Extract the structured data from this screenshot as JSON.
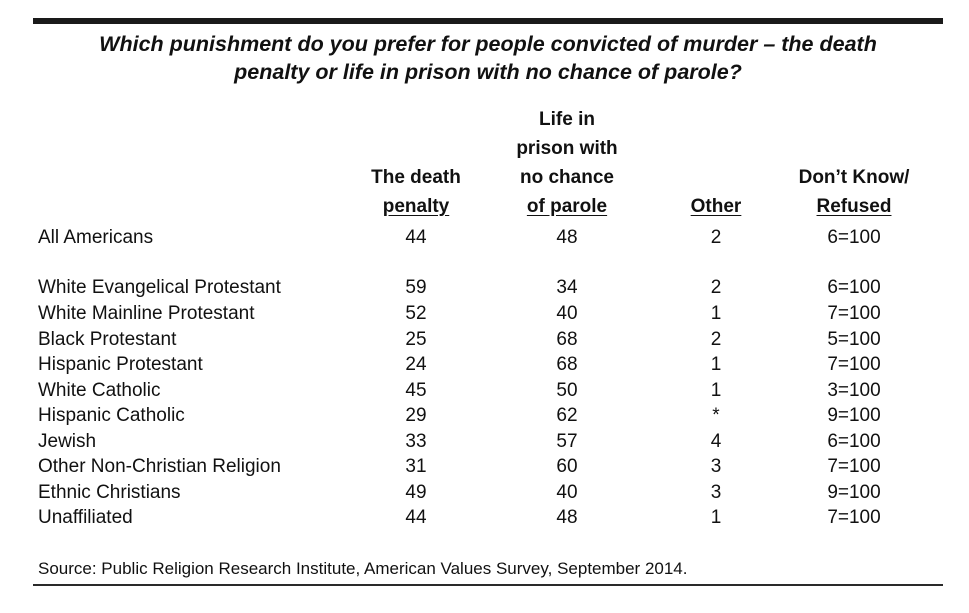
{
  "title": {
    "line1": "Which punishment do you prefer for people convicted of murder – the death",
    "line2": "penalty or life in prison with no chance of parole?"
  },
  "columns": [
    {
      "lines": [
        "The death"
      ],
      "underlined": "penalty"
    },
    {
      "lines": [
        "Life in",
        "prison with",
        "no chance"
      ],
      "underlined": "of parole"
    },
    {
      "lines": [],
      "underlined": "Other"
    },
    {
      "lines": [
        "Don’t Know/"
      ],
      "underlined": "Refused"
    }
  ],
  "rows": [
    {
      "label": "All Americans",
      "values": [
        "44",
        "48",
        "2",
        "6=100"
      ]
    },
    {
      "label": "White Evangelical Protestant",
      "values": [
        "59",
        "34",
        "2",
        "6=100"
      ]
    },
    {
      "label": "White Mainline Protestant",
      "values": [
        "52",
        "40",
        "1",
        "7=100"
      ]
    },
    {
      "label": "Black Protestant",
      "values": [
        "25",
        "68",
        "2",
        "5=100"
      ]
    },
    {
      "label": "Hispanic Protestant",
      "values": [
        "24",
        "68",
        "1",
        "7=100"
      ]
    },
    {
      "label": "White Catholic",
      "values": [
        "45",
        "50",
        "1",
        "3=100"
      ]
    },
    {
      "label": "Hispanic Catholic",
      "values": [
        "29",
        "62",
        "*",
        "9=100"
      ]
    },
    {
      "label": "Jewish",
      "values": [
        "33",
        "57",
        "4",
        "6=100"
      ]
    },
    {
      "label": "Other Non-Christian Religion",
      "values": [
        "31",
        "60",
        "3",
        "7=100"
      ]
    },
    {
      "label": "Ethnic Christians",
      "values": [
        "49",
        "40",
        "3",
        "9=100"
      ]
    },
    {
      "label": "Unaffiliated",
      "values": [
        "44",
        "48",
        "1",
        "7=100"
      ]
    }
  ],
  "source": "Source: Public Religion Research Institute, American Values Survey, September 2014."
}
